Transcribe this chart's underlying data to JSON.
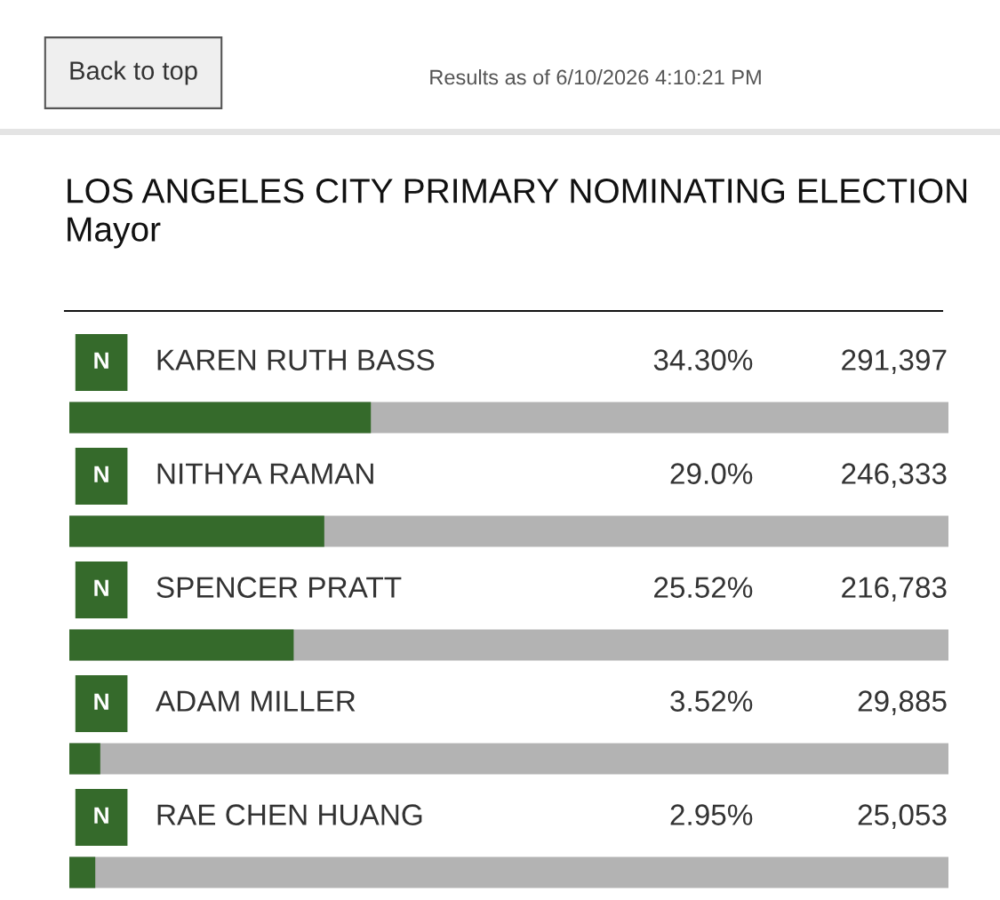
{
  "chart_data": {
    "type": "bar",
    "orientation": "horizontal",
    "title": "LOS ANGELES CITY PRIMARY NOMINATING ELECTION Mayor",
    "subtitle": "Results as of 6/10/2026 4:10:21 PM",
    "categories": [
      "KAREN RUTH BASS",
      "NITHYA RAMAN",
      "SPENCER PRATT",
      "ADAM MILLER",
      "RAE CHEN HUANG"
    ],
    "series": [
      {
        "color": "#356a2b",
        "values": [
          34.3,
          29.0,
          25.52,
          3.52,
          2.95
        ],
        "value_labels": [
          "34.30%",
          "29.0%",
          "25.52%",
          "3.52%",
          "2.95%"
        ]
      }
    ],
    "xlim": [
      0,
      100
    ],
    "tick_labels": false,
    "annotations": [
      "Back to top",
      "N",
      "291,397",
      "N",
      "246,333",
      "N",
      "216,783",
      "N",
      "29,885",
      "N",
      "25,053"
    ]
  }
}
